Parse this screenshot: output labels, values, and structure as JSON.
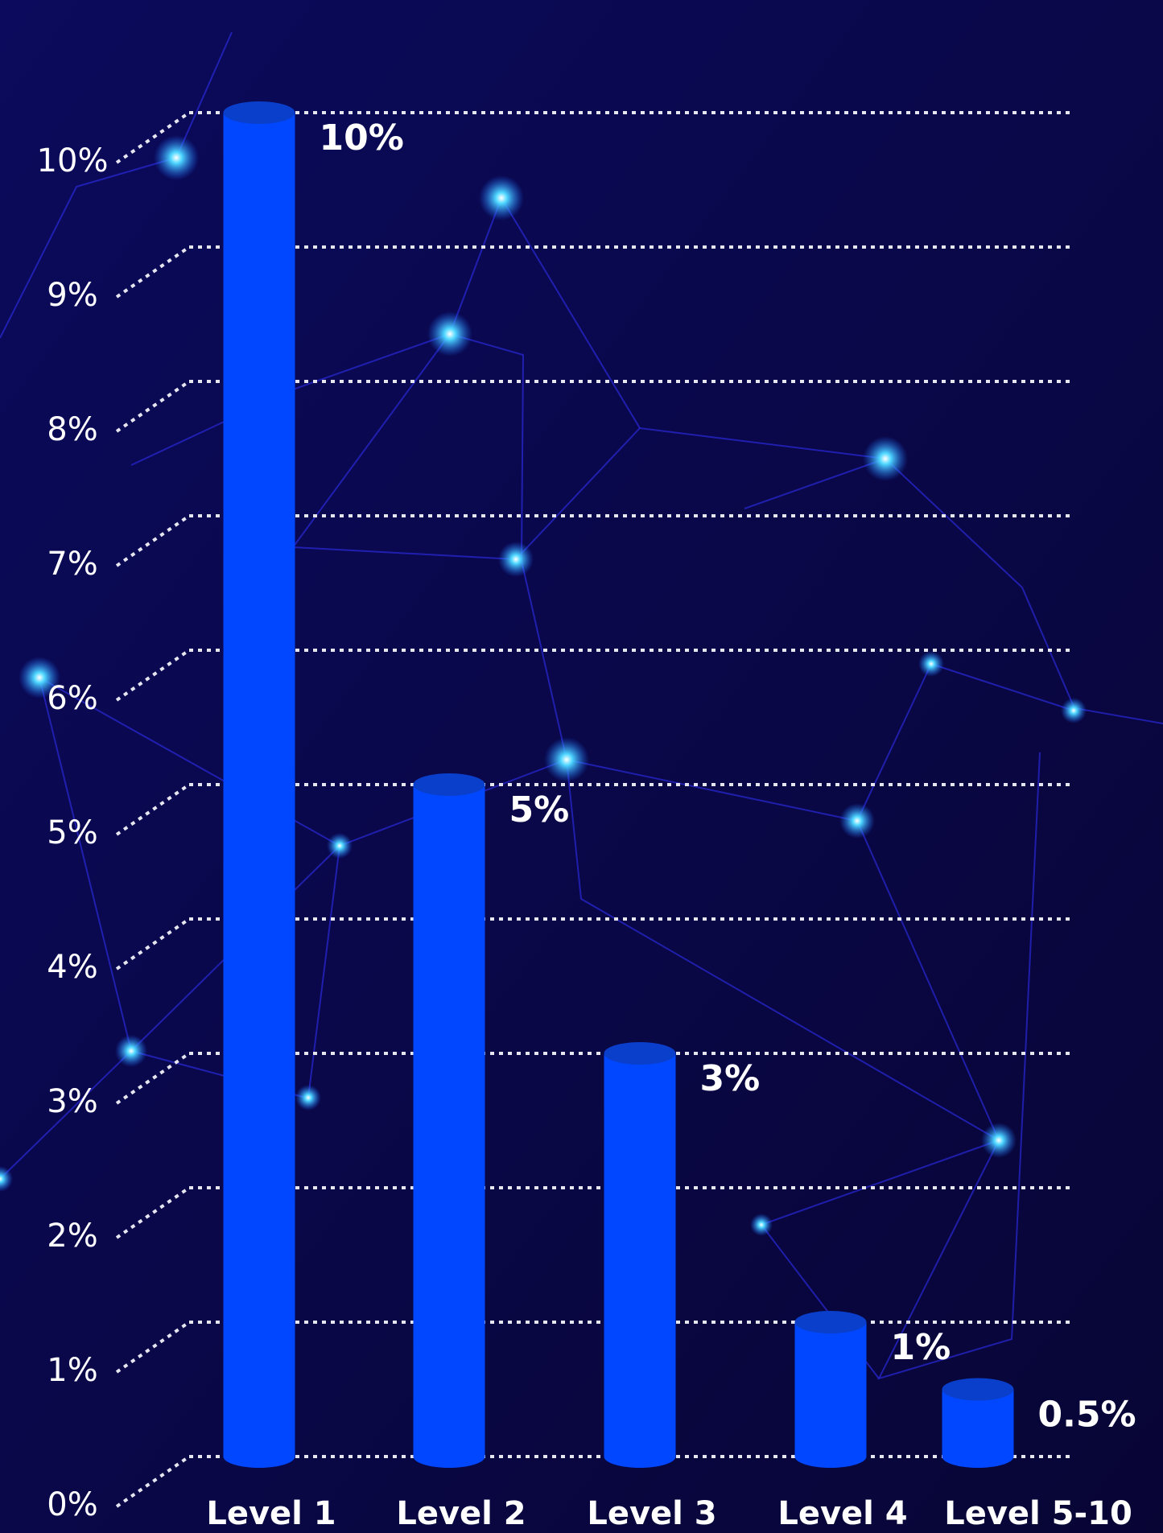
{
  "chart_data": {
    "type": "bar",
    "categories": [
      "Level 1",
      "Level 2",
      "Level 3",
      "Level 4",
      "Level 5-10"
    ],
    "values": [
      10,
      5,
      3,
      1,
      0.5
    ],
    "value_labels": [
      "10%",
      "5%",
      "3%",
      "1%",
      "0.5%"
    ],
    "color": "#0047ff",
    "ylim": [
      0,
      10
    ],
    "yticks": [
      {
        "value": 0,
        "label": "0%"
      },
      {
        "value": 1,
        "label": "1%"
      },
      {
        "value": 2,
        "label": "2%"
      },
      {
        "value": 3,
        "label": "3%"
      },
      {
        "value": 4,
        "label": "4%"
      },
      {
        "value": 5,
        "label": "5%"
      },
      {
        "value": 6,
        "label": "6%"
      },
      {
        "value": 7,
        "label": "7%"
      },
      {
        "value": 8,
        "label": "8%"
      },
      {
        "value": 9,
        "label": "9%"
      },
      {
        "value": 10,
        "label": "10%"
      }
    ],
    "grid": true
  }
}
